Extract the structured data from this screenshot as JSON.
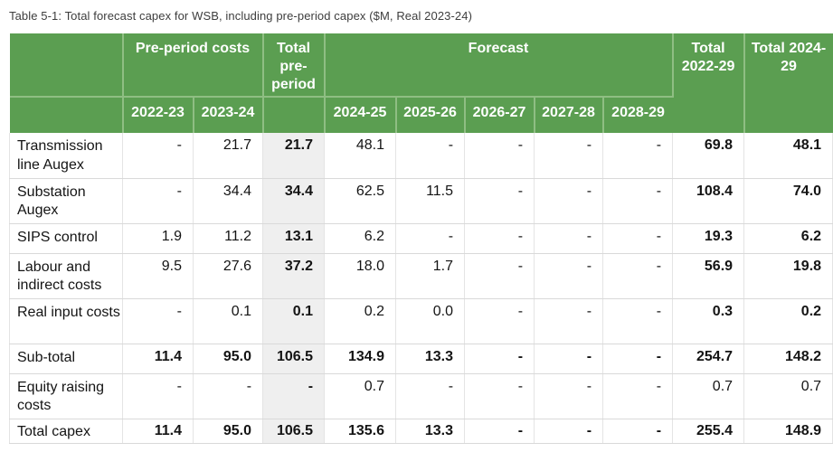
{
  "title": "Table 5-1: Total forecast capex for WSB, including pre-period capex ($M, Real 2023-24)",
  "colors": {
    "header_green": "#5b9e51",
    "header_divider_green": "#8fbe83",
    "header_text": "#ffffff",
    "pre_period_total_column_bg": "#efefef",
    "body_border": "#d9d9d9",
    "body_text": "#141414"
  },
  "table": {
    "header": {
      "group_row": {
        "blank": "",
        "pre_period_costs": "Pre-period costs",
        "total_pre_period": "Total pre-period",
        "forecast": "Forecast",
        "total_2022_29": "Total 2022-29",
        "total_2024_29": "Total 2024-29"
      },
      "year_row": [
        "2022-23",
        "2023-24",
        "2024-25",
        "2025-26",
        "2026-27",
        "2027-28",
        "2028-29"
      ]
    },
    "columns": [
      "",
      "2022-23",
      "2023-24",
      "Total pre-period",
      "2024-25",
      "2025-26",
      "2026-27",
      "2027-28",
      "2028-29",
      "Total 2022-29",
      "Total 2024-29"
    ],
    "rows": [
      {
        "label": "Transmission line Augex",
        "values": [
          "-",
          "21.7",
          "21.7",
          "48.1",
          "-",
          "-",
          "-",
          "-",
          "69.8",
          "48.1"
        ],
        "row_bold": false,
        "totals_bold": true
      },
      {
        "label": "Substation Augex",
        "values": [
          "-",
          "34.4",
          "34.4",
          "62.5",
          "11.5",
          "-",
          "-",
          "-",
          "108.4",
          "74.0"
        ],
        "row_bold": false,
        "totals_bold": true
      },
      {
        "label": "SIPS control",
        "values": [
          "1.9",
          "11.2",
          "13.1",
          "6.2",
          "-",
          "-",
          "-",
          "-",
          "19.3",
          "6.2"
        ],
        "row_bold": false,
        "totals_bold": true
      },
      {
        "label": "Labour and indirect costs",
        "values": [
          "9.5",
          "27.6",
          "37.2",
          "18.0",
          "1.7",
          "-",
          "-",
          "-",
          "56.9",
          "19.8"
        ],
        "row_bold": false,
        "totals_bold": true
      },
      {
        "label": "Real input costs",
        "values": [
          "-",
          "0.1",
          "0.1",
          "0.2",
          "0.0",
          "-",
          "-",
          "-",
          "0.3",
          "0.2"
        ],
        "row_bold": false,
        "totals_bold": true
      },
      {
        "label": "Sub-total",
        "values": [
          "11.4",
          "95.0",
          "106.5",
          "134.9",
          "13.3",
          "-",
          "-",
          "-",
          "254.7",
          "148.2"
        ],
        "row_bold": true,
        "totals_bold": true
      },
      {
        "label": "Equity raising costs",
        "values": [
          "-",
          "-",
          "-",
          "0.7",
          "-",
          "-",
          "-",
          "-",
          "0.7",
          "0.7"
        ],
        "row_bold": false,
        "totals_bold": false
      },
      {
        "label": "Total capex",
        "values": [
          "11.4",
          "95.0",
          "106.5",
          "135.6",
          "13.3",
          "-",
          "-",
          "-",
          "255.4",
          "148.9"
        ],
        "row_bold": true,
        "totals_bold": true
      }
    ]
  }
}
